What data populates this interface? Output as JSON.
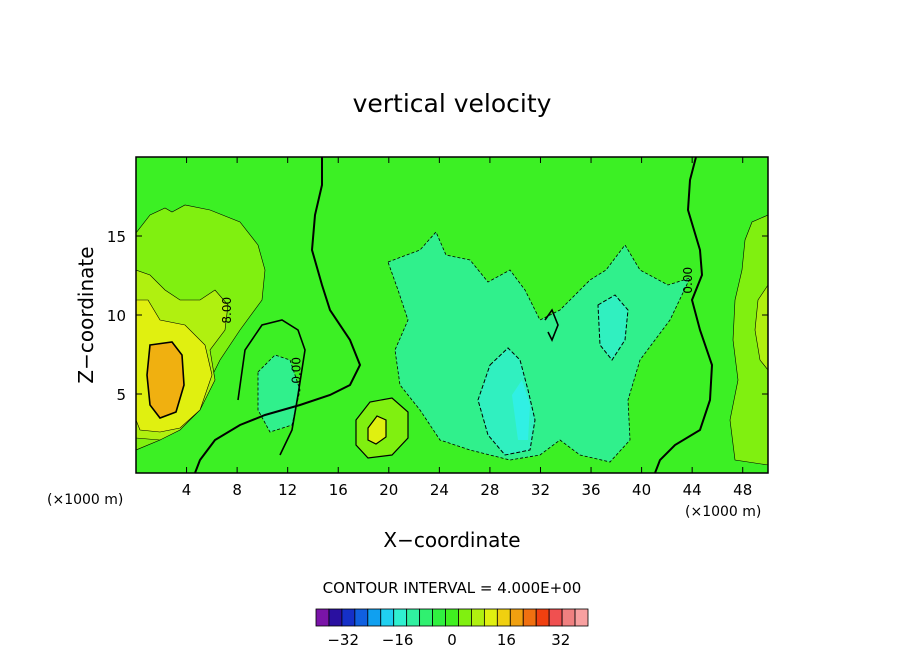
{
  "chart_data": {
    "type": "contour",
    "title": "vertical velocity",
    "xlabel": "X−coordinate",
    "ylabel": "Z−coordinate",
    "x_unit": "(×1000 m)",
    "x_unit_right": "(×1000 m)",
    "xlim": [
      0,
      50
    ],
    "ylim": [
      0,
      20
    ],
    "x_ticks": [
      "4",
      "8",
      "12",
      "16",
      "20",
      "24",
      "28",
      "32",
      "36",
      "40",
      "44",
      "48"
    ],
    "x_tick_values": [
      4,
      8,
      12,
      16,
      20,
      24,
      28,
      32,
      36,
      40,
      44,
      48
    ],
    "y_ticks": [
      "5",
      "10",
      "15"
    ],
    "y_tick_values": [
      5,
      10,
      15
    ],
    "contour_labels": [
      {
        "text": "8.00",
        "x": 7.5,
        "y": 10.3
      },
      {
        "text": "0.00",
        "x": 13.0,
        "y": 6.5
      },
      {
        "text": "0.00",
        "x": 44.0,
        "y": 12.2
      }
    ],
    "contour_interval_text": "CONTOUR INTERVAL = 4.000E+00",
    "colorbar": {
      "tick_labels": [
        "−32",
        "−16",
        "0",
        "16",
        "32"
      ],
      "tick_values": [
        -32,
        -16,
        0,
        16,
        32
      ],
      "levels": [
        -40,
        -36,
        -32,
        -28,
        -24,
        -20,
        -16,
        -12,
        -8,
        -4,
        0,
        4,
        8,
        12,
        16,
        20,
        24,
        28,
        32,
        36,
        40
      ],
      "colors": [
        "#7a14a8",
        "#2a10a0",
        "#1530c8",
        "#1060e0",
        "#10a0f0",
        "#20d0f0",
        "#30f0d0",
        "#30f0a0",
        "#30f070",
        "#30f040",
        "#40f020",
        "#80f010",
        "#b0f010",
        "#e0f010",
        "#f0d010",
        "#f0a010",
        "#f07010",
        "#f04010",
        "#f05050",
        "#f08080",
        "#f8a0a0"
      ]
    }
  }
}
